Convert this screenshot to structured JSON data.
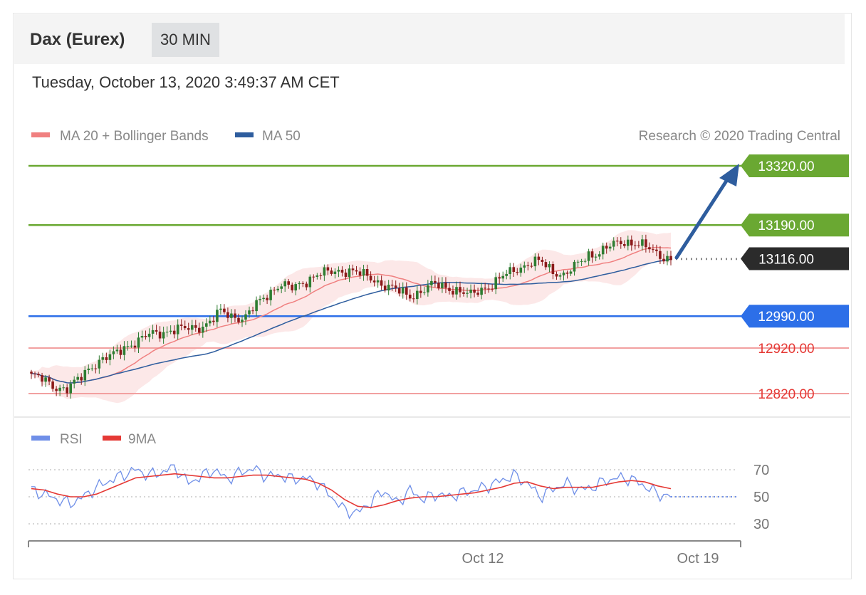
{
  "header": {
    "instrument": "Dax (Eurex)",
    "interval": "30 MIN",
    "datetime": "Tuesday, October 13, 2020 3:49:37 AM CET"
  },
  "legend": {
    "ma20": "MA 20 + Bollinger Bands",
    "ma50": "MA 50",
    "copyright": "Research © 2020 Trading Central",
    "rsi": "RSI",
    "rsi_ma": "9MA"
  },
  "colors": {
    "resistance": "#6aa832",
    "current": "#2b2b2b",
    "pivot": "#2d6fe8",
    "support": "#f2a0a0",
    "support_text": "#e53935",
    "ma20": "#f08080",
    "ma50": "#2e5d9e",
    "candle_up": "#2e7d32",
    "candle_down": "#8b1a1a",
    "rsi": "#6f8fe8",
    "rsi_ma": "#e53935",
    "arrow": "#2e5d9e"
  },
  "chart_data": {
    "type": "candlestick",
    "ylim": [
      12750,
      13360
    ],
    "levels": [
      {
        "label": "13320.00",
        "value": 13320,
        "kind": "resistance"
      },
      {
        "label": "13190.00",
        "value": 13190,
        "kind": "resistance"
      },
      {
        "label": "13116.00",
        "value": 13116,
        "kind": "current"
      },
      {
        "label": "12990.00",
        "value": 12990,
        "kind": "pivot"
      },
      {
        "label": "12920.00",
        "value": 12920,
        "kind": "support"
      },
      {
        "label": "12820.00",
        "value": 12820,
        "kind": "support"
      }
    ],
    "price_anchors": [
      12860,
      12850,
      12835,
      12830,
      12850,
      12880,
      12895,
      12905,
      12925,
      12935,
      12950,
      12955,
      12960,
      12962,
      12965,
      12975,
      13000,
      12990,
      12985,
      13015,
      13040,
      13060,
      13050,
      13065,
      13080,
      13085,
      13090,
      13090,
      13080,
      13070,
      13055,
      13045,
      13035,
      13045,
      13060,
      13055,
      13045,
      13035,
      13050,
      13060,
      13080,
      13095,
      13105,
      13110,
      13090,
      13080,
      13100,
      13125,
      13130,
      13145,
      13155,
      13150,
      13140,
      13125,
      13115
    ],
    "candle_count": 180,
    "rsi": {
      "ylim": [
        20,
        80
      ],
      "guides": [
        70,
        50,
        30
      ],
      "current": 50,
      "series": [
        55,
        52,
        48,
        45,
        50,
        57,
        62,
        66,
        70,
        66,
        68,
        72,
        60,
        65,
        70,
        63,
        68,
        71,
        65,
        66,
        63,
        64,
        60,
        50,
        40,
        38,
        46,
        55,
        45,
        55,
        48,
        52,
        50,
        53,
        55,
        58,
        62,
        66,
        60,
        50,
        56,
        60,
        55,
        57,
        62,
        64,
        63,
        58,
        52,
        50
      ],
      "ma_series": [
        56,
        55,
        52,
        50,
        50,
        52,
        56,
        60,
        64,
        65,
        66,
        67,
        66,
        65,
        64,
        64,
        65,
        66,
        66,
        65,
        64,
        63,
        60,
        55,
        48,
        43,
        42,
        44,
        47,
        49,
        50,
        50,
        51,
        52,
        53,
        55,
        57,
        60,
        61,
        58,
        56,
        57,
        57,
        57,
        59,
        61,
        62,
        61,
        58,
        56
      ]
    },
    "x_tick_labels": [
      "Oct 12",
      "Oct 19"
    ]
  }
}
